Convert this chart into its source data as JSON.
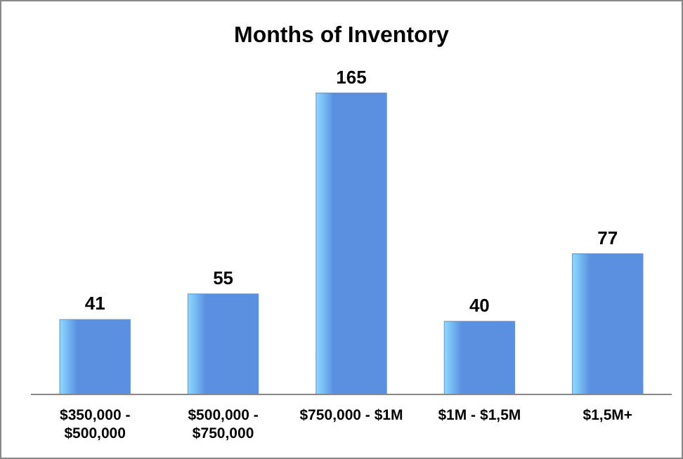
{
  "chart_data": {
    "type": "bar",
    "title": "Months of Inventory",
    "categories": [
      "$350,000 - $500,000",
      "$500,000 - $750,000",
      "$750,000 - $1M",
      "$1M - $1,5M",
      "$1,5M+"
    ],
    "values": [
      41,
      55,
      165,
      40,
      77
    ],
    "color": "#5b8fe0",
    "data_labels": true
  }
}
